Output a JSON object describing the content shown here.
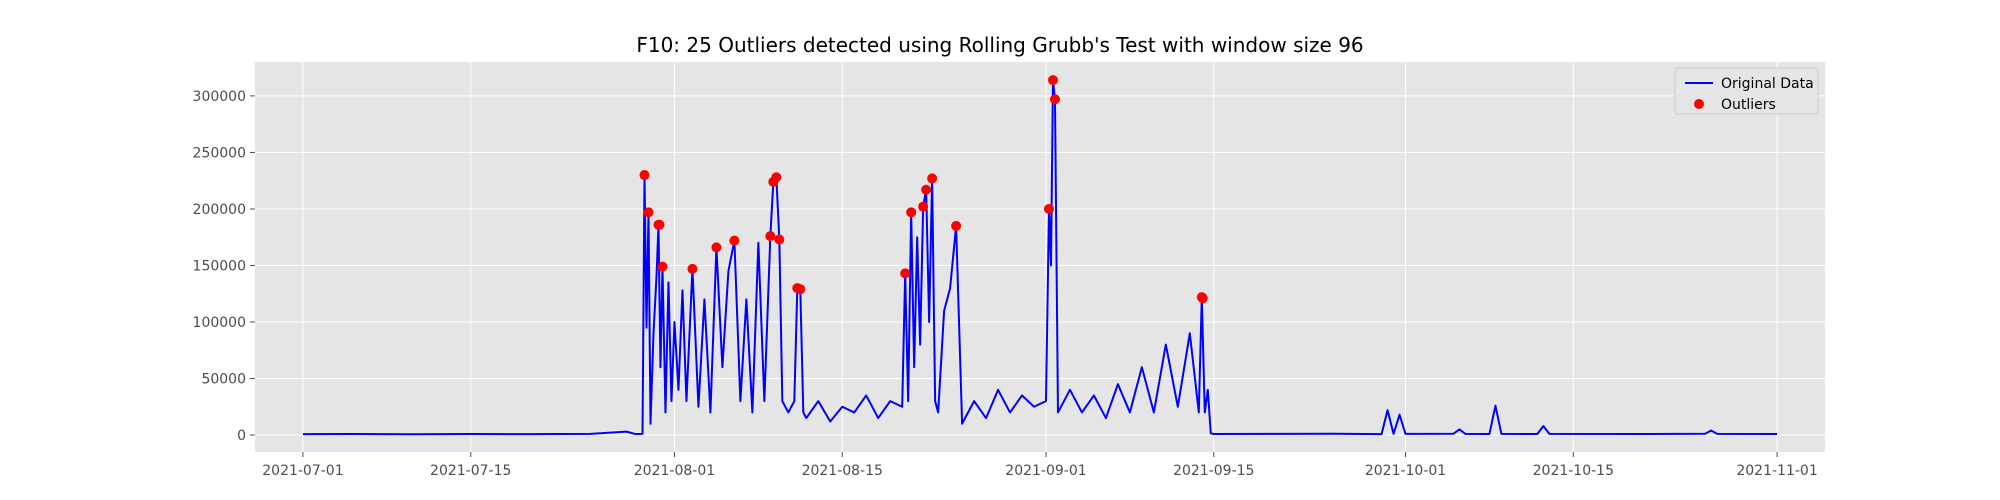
{
  "chart_data": {
    "type": "line",
    "title": "F10: 25 Outliers detected using Rolling Grubb's Test with window size 96",
    "xlabel": "",
    "ylabel": "",
    "x_is_date": true,
    "xlim": [
      "2021-06-27",
      "2021-11-05"
    ],
    "ylim": [
      -15000,
      330000
    ],
    "x_ticks": [
      "2021-07-01",
      "2021-07-15",
      "2021-08-01",
      "2021-08-15",
      "2021-09-01",
      "2021-09-15",
      "2021-10-01",
      "2021-10-15",
      "2021-11-01"
    ],
    "y_ticks": [
      0,
      50000,
      100000,
      150000,
      200000,
      250000,
      300000
    ],
    "y_tick_labels": [
      "0",
      "50000",
      "100000",
      "150000",
      "200000",
      "250000",
      "300000"
    ],
    "grid": true,
    "legend_position": "top-right",
    "series": [
      {
        "name": "Original Data",
        "color": "#0000ff",
        "points": [
          [
            "2021-07-01",
            800
          ],
          [
            "2021-07-05",
            900
          ],
          [
            "2021-07-10",
            700
          ],
          [
            "2021-07-15",
            900
          ],
          [
            "2021-07-20",
            800
          ],
          [
            "2021-07-25",
            1000
          ],
          [
            "2021-07-28",
            3000
          ],
          [
            "2021-07-28T18:00",
            900
          ],
          [
            "2021-07-29T08:00",
            1000
          ],
          [
            "2021-07-29T12:00",
            230000
          ],
          [
            "2021-07-29T16:00",
            95000
          ],
          [
            "2021-07-29T20:00",
            197000
          ],
          [
            "2021-07-30T00:00",
            10000
          ],
          [
            "2021-07-30T06:00",
            90000
          ],
          [
            "2021-07-30T12:00",
            140000
          ],
          [
            "2021-07-30T16:00",
            186000
          ],
          [
            "2021-07-30T20:00",
            60000
          ],
          [
            "2021-07-31T00:00",
            149000
          ],
          [
            "2021-07-31T06:00",
            20000
          ],
          [
            "2021-07-31T12:00",
            135000
          ],
          [
            "2021-07-31T18:00",
            30000
          ],
          [
            "2021-08-01T00:00",
            100000
          ],
          [
            "2021-08-01T08:00",
            40000
          ],
          [
            "2021-08-01T16:00",
            128000
          ],
          [
            "2021-08-02",
            30000
          ],
          [
            "2021-08-02T12:00",
            147000
          ],
          [
            "2021-08-03",
            25000
          ],
          [
            "2021-08-03T12:00",
            120000
          ],
          [
            "2021-08-04",
            20000
          ],
          [
            "2021-08-04T12:00",
            166000
          ],
          [
            "2021-08-05",
            60000
          ],
          [
            "2021-08-05T12:00",
            145000
          ],
          [
            "2021-08-06",
            172000
          ],
          [
            "2021-08-06T12:00",
            30000
          ],
          [
            "2021-08-07",
            120000
          ],
          [
            "2021-08-07T12:00",
            20000
          ],
          [
            "2021-08-08",
            170000
          ],
          [
            "2021-08-08T12:00",
            30000
          ],
          [
            "2021-08-09",
            176000
          ],
          [
            "2021-08-09T06:00",
            224000
          ],
          [
            "2021-08-09T12:00",
            228000
          ],
          [
            "2021-08-09T18:00",
            173000
          ],
          [
            "2021-08-10",
            30000
          ],
          [
            "2021-08-10T12:00",
            20000
          ],
          [
            "2021-08-11",
            30000
          ],
          [
            "2021-08-11T06:00",
            130000
          ],
          [
            "2021-08-11T12:00",
            129000
          ],
          [
            "2021-08-11T18:00",
            20000
          ],
          [
            "2021-08-12",
            15000
          ],
          [
            "2021-08-13",
            30000
          ],
          [
            "2021-08-14",
            12000
          ],
          [
            "2021-08-15",
            25000
          ],
          [
            "2021-08-16",
            20000
          ],
          [
            "2021-08-17",
            35000
          ],
          [
            "2021-08-18",
            15000
          ],
          [
            "2021-08-19",
            30000
          ],
          [
            "2021-08-20",
            25000
          ],
          [
            "2021-08-20T06:00",
            143000
          ],
          [
            "2021-08-20T12:00",
            30000
          ],
          [
            "2021-08-20T18:00",
            197000
          ],
          [
            "2021-08-21",
            60000
          ],
          [
            "2021-08-21T06:00",
            175000
          ],
          [
            "2021-08-21T12:00",
            80000
          ],
          [
            "2021-08-21T18:00",
            202000
          ],
          [
            "2021-08-22",
            217000
          ],
          [
            "2021-08-22T06:00",
            100000
          ],
          [
            "2021-08-22T12:00",
            227000
          ],
          [
            "2021-08-22T18:00",
            30000
          ],
          [
            "2021-08-23",
            20000
          ],
          [
            "2021-08-23T12:00",
            110000
          ],
          [
            "2021-08-24",
            130000
          ],
          [
            "2021-08-24T12:00",
            185000
          ],
          [
            "2021-08-25",
            10000
          ],
          [
            "2021-08-26",
            30000
          ],
          [
            "2021-08-27",
            15000
          ],
          [
            "2021-08-28",
            40000
          ],
          [
            "2021-08-29",
            20000
          ],
          [
            "2021-08-30",
            35000
          ],
          [
            "2021-08-31",
            25000
          ],
          [
            "2021-09-01",
            30000
          ],
          [
            "2021-09-01T06:00",
            200000
          ],
          [
            "2021-09-01T10:00",
            150000
          ],
          [
            "2021-09-01T14:00",
            314000
          ],
          [
            "2021-09-01T18:00",
            297000
          ],
          [
            "2021-09-02",
            20000
          ],
          [
            "2021-09-03",
            40000
          ],
          [
            "2021-09-04",
            20000
          ],
          [
            "2021-09-05",
            35000
          ],
          [
            "2021-09-06",
            15000
          ],
          [
            "2021-09-07",
            45000
          ],
          [
            "2021-09-08",
            20000
          ],
          [
            "2021-09-09",
            60000
          ],
          [
            "2021-09-10",
            20000
          ],
          [
            "2021-09-11",
            80000
          ],
          [
            "2021-09-12",
            25000
          ],
          [
            "2021-09-13",
            90000
          ],
          [
            "2021-09-13T18:00",
            20000
          ],
          [
            "2021-09-14",
            122000
          ],
          [
            "2021-09-14T06:00",
            20000
          ],
          [
            "2021-09-14T12:00",
            40000
          ],
          [
            "2021-09-14T18:00",
            1500
          ],
          [
            "2021-09-15",
            900
          ],
          [
            "2021-09-20",
            1000
          ],
          [
            "2021-09-25",
            1200
          ],
          [
            "2021-09-29",
            800
          ],
          [
            "2021-09-29T12:00",
            22000
          ],
          [
            "2021-09-30",
            1000
          ],
          [
            "2021-09-30T12:00",
            18000
          ],
          [
            "2021-10-01",
            1000
          ],
          [
            "2021-10-05",
            1200
          ],
          [
            "2021-10-05T12:00",
            5000
          ],
          [
            "2021-10-06",
            1000
          ],
          [
            "2021-10-08",
            900
          ],
          [
            "2021-10-08T12:00",
            26000
          ],
          [
            "2021-10-09",
            1000
          ],
          [
            "2021-10-12",
            900
          ],
          [
            "2021-10-12T12:00",
            8000
          ],
          [
            "2021-10-13",
            1000
          ],
          [
            "2021-10-20",
            900
          ],
          [
            "2021-10-26",
            1100
          ],
          [
            "2021-10-26T12:00",
            4000
          ],
          [
            "2021-10-27",
            1000
          ],
          [
            "2021-11-01",
            900
          ]
        ]
      },
      {
        "name": "Outliers",
        "color": "#ff0000",
        "points": [
          [
            "2021-07-29T12:00",
            230000
          ],
          [
            "2021-07-29T20:00",
            197000
          ],
          [
            "2021-07-30T16:00",
            186000
          ],
          [
            "2021-07-30T18:00",
            186000
          ],
          [
            "2021-07-31T00:00",
            149000
          ],
          [
            "2021-08-02T12:00",
            147000
          ],
          [
            "2021-08-04T12:00",
            166000
          ],
          [
            "2021-08-06",
            172000
          ],
          [
            "2021-08-09",
            176000
          ],
          [
            "2021-08-09T06:00",
            224000
          ],
          [
            "2021-08-09T12:00",
            228000
          ],
          [
            "2021-08-09T18:00",
            173000
          ],
          [
            "2021-08-11T06:00",
            130000
          ],
          [
            "2021-08-11T12:00",
            129000
          ],
          [
            "2021-08-20T06:00",
            143000
          ],
          [
            "2021-08-20T18:00",
            197000
          ],
          [
            "2021-08-21T18:00",
            202000
          ],
          [
            "2021-08-22",
            217000
          ],
          [
            "2021-08-22T12:00",
            227000
          ],
          [
            "2021-08-24T12:00",
            185000
          ],
          [
            "2021-09-01T06:00",
            200000
          ],
          [
            "2021-09-01T14:00",
            314000
          ],
          [
            "2021-09-01T18:00",
            297000
          ],
          [
            "2021-09-14",
            122000
          ],
          [
            "2021-09-14T02:00",
            121000
          ]
        ]
      }
    ],
    "legend": [
      {
        "label": "Original Data",
        "marker": "line",
        "color": "#0000ff"
      },
      {
        "label": "Outliers",
        "marker": "dot",
        "color": "#ff0000"
      }
    ],
    "colors": {
      "plot_bg": "#e5e5e5",
      "grid": "#ffffff",
      "axis_text": "#4d4d4d"
    }
  }
}
